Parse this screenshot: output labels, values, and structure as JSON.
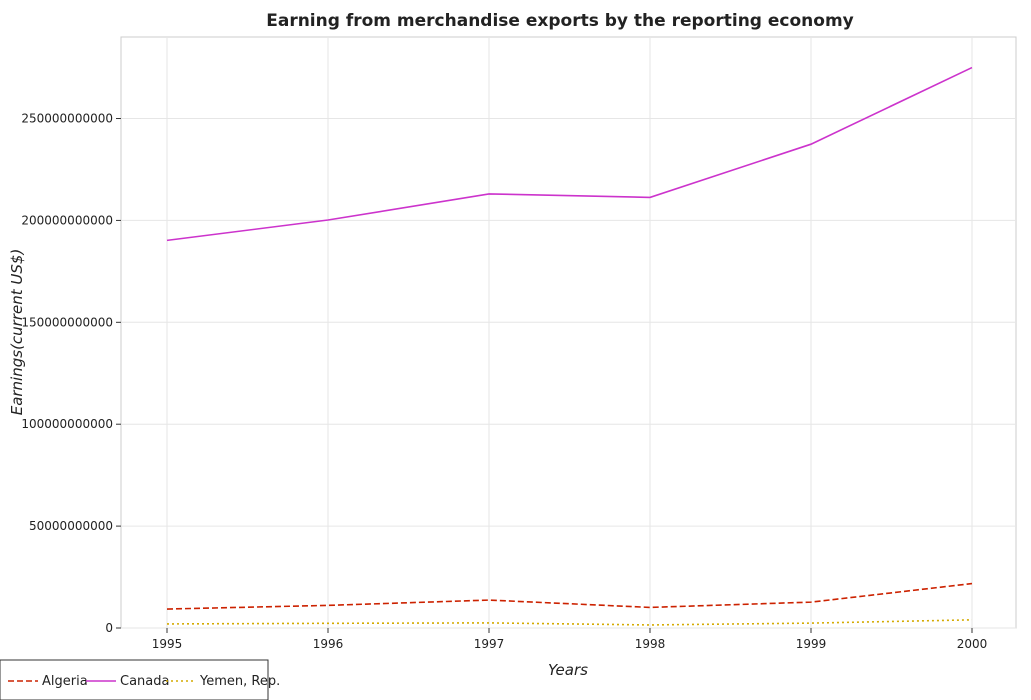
{
  "chart_data": {
    "type": "line",
    "title": "Earning from merchandise exports by the reporting economy",
    "xlabel": "Years",
    "ylabel": "Earnings(current US$)",
    "x": [
      "1995",
      "1996",
      "1997",
      "1998",
      "1999",
      "2000"
    ],
    "ylim": [
      0,
      290000000000
    ],
    "yticks": [
      0,
      50000000000,
      100000000000,
      150000000000,
      200000000000,
      250000000000
    ],
    "ytick_labels": [
      "0",
      "50000000000",
      "100000000000",
      "150000000000",
      "200000000000",
      "250000000000"
    ],
    "grid": true,
    "legend_position": "bottom-left",
    "series": [
      {
        "name": "Algeria",
        "color": "#cc2200",
        "dash": "6,3",
        "values": [
          9300000000,
          11100000000,
          13700000000,
          10100000000,
          12700000000,
          21800000000
        ]
      },
      {
        "name": "Canada",
        "color": "#cc33cc",
        "dash": "",
        "values": [
          190200000000,
          200200000000,
          213000000000,
          211300000000,
          237400000000,
          275000000000
        ]
      },
      {
        "name": "Yemen, Rep.",
        "color": "#d4aa00",
        "dash": "2,3",
        "values": [
          2000000000,
          2300000000,
          2500000000,
          1500000000,
          2400000000,
          4000000000
        ]
      }
    ]
  }
}
